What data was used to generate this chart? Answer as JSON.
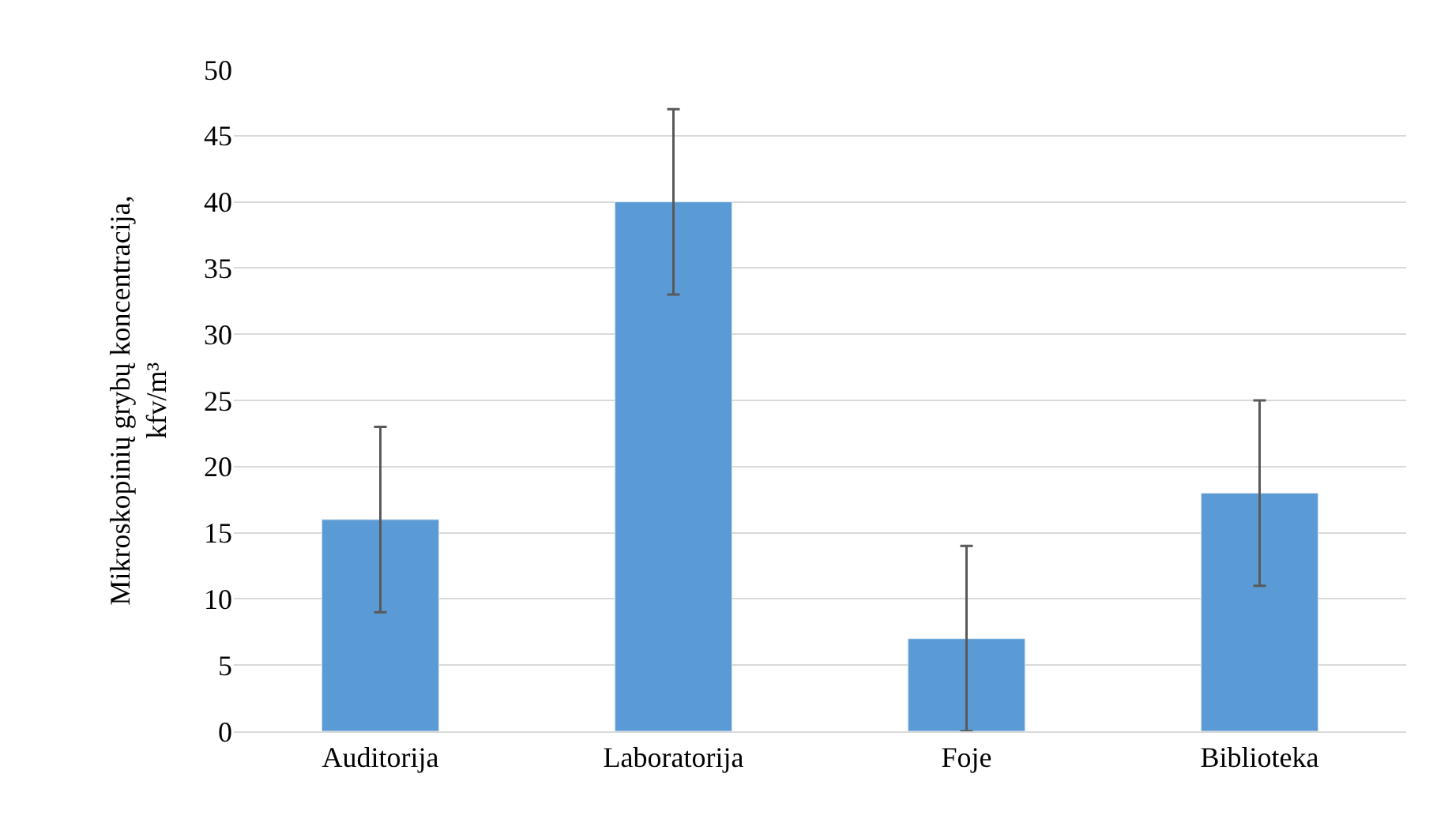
{
  "chart_data": {
    "type": "bar",
    "ylabel": "Mikroskopinių grybų koncentracija,\nkfv/m³",
    "categories": [
      "Auditorija",
      "Laboratorija",
      "Foje",
      "Biblioteka"
    ],
    "values": [
      16,
      40,
      7,
      18
    ],
    "errors": [
      7,
      7,
      7,
      7
    ],
    "color": "#5b9bd5",
    "ylim": [
      0,
      50
    ],
    "yticks": [
      0,
      5,
      10,
      15,
      20,
      25,
      30,
      35,
      40,
      45,
      50
    ],
    "grid": "y",
    "legend": false
  }
}
